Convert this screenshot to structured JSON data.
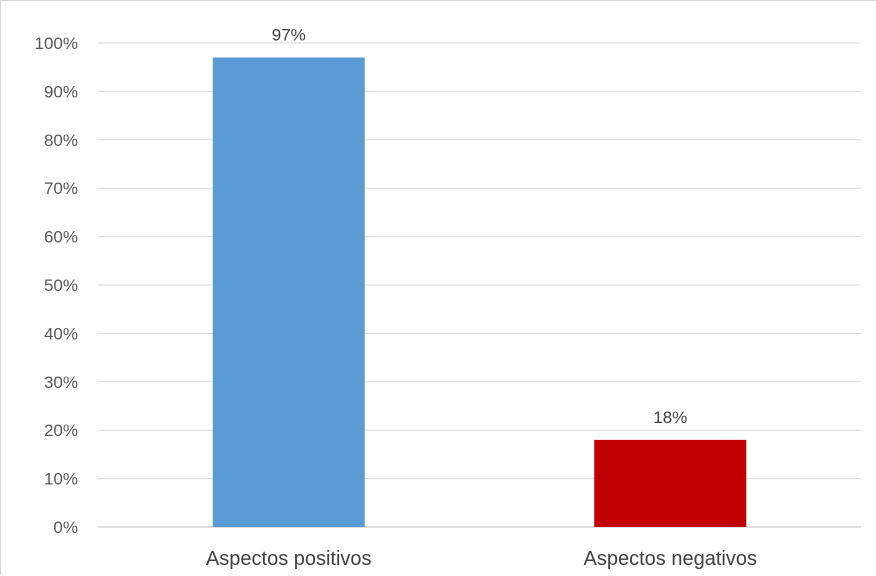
{
  "chart_data": {
    "type": "bar",
    "categories": [
      "Aspectos positivos",
      "Aspectos negativos"
    ],
    "values": [
      97,
      18
    ],
    "data_labels": [
      "97%",
      "18%"
    ],
    "bar_colors": [
      "#5b9bd5",
      "#c00000"
    ],
    "ylim": [
      0,
      100
    ],
    "ytick_step": 10,
    "ytick_labels": [
      "0%",
      "10%",
      "20%",
      "30%",
      "40%",
      "50%",
      "60%",
      "70%",
      "80%",
      "90%",
      "100%"
    ],
    "grid": true,
    "legend": "none",
    "title": "",
    "xlabel": "",
    "ylabel": ""
  }
}
